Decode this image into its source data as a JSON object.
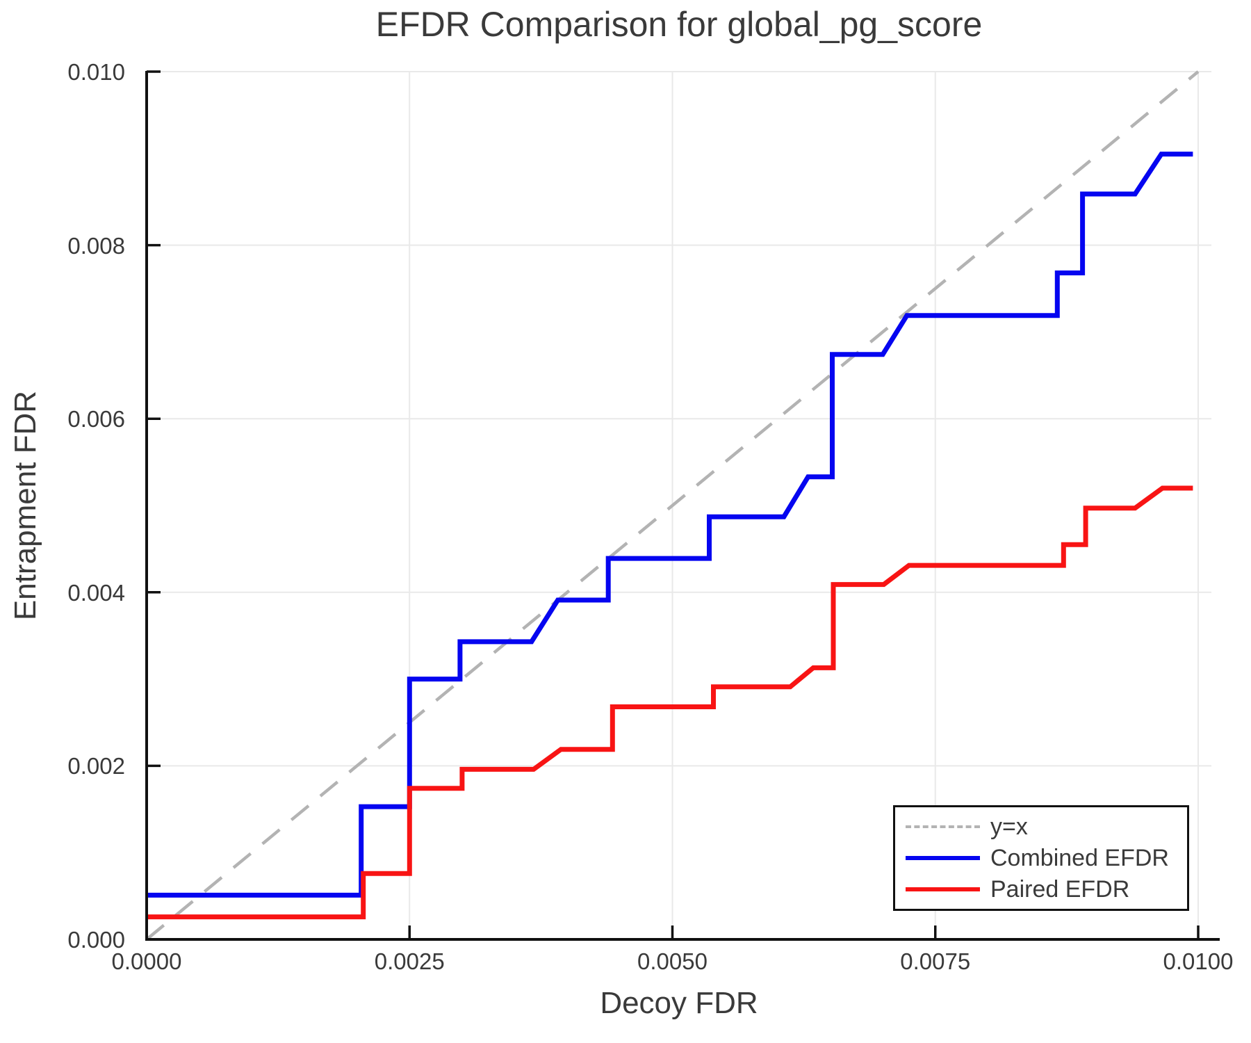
{
  "title": "EFDR Comparison for global_pg_score",
  "axes": {
    "xlabel": "Decoy FDR",
    "ylabel": "Entrapment FDR"
  },
  "legend": {
    "items": [
      {
        "label": "y=x",
        "color": "#b3b3b3",
        "style": "dashed"
      },
      {
        "label": "Combined EFDR",
        "color": "#0505f0",
        "style": "solid"
      },
      {
        "label": "Paired EFDR",
        "color": "#f81414",
        "style": "solid"
      }
    ]
  },
  "chart_data": {
    "type": "line",
    "title": "EFDR Comparison for global_pg_score",
    "xlabel": "Decoy FDR",
    "ylabel": "Entrapment FDR",
    "xlim": [
      0.0,
      0.0102
    ],
    "ylim": [
      0.0,
      0.01
    ],
    "grid": true,
    "grid_color": "#e9e9e9",
    "spine_color": "#111111",
    "tick_color": "#111111",
    "legend_position": "lower right",
    "x_ticks": [
      0.0,
      0.0025,
      0.005,
      0.0075,
      0.01
    ],
    "x_tick_labels": [
      "0.0000",
      "0.0025",
      "0.0050",
      "0.0075",
      "0.0100"
    ],
    "y_ticks": [
      0.0,
      0.002,
      0.004,
      0.006,
      0.008,
      0.01
    ],
    "y_tick_labels": [
      "0.000",
      "0.002",
      "0.004",
      "0.006",
      "0.008",
      "0.010"
    ],
    "series": [
      {
        "name": "y=x",
        "color": "#b3b3b3",
        "style": "dashed",
        "width": 4.5,
        "points": [
          [
            0.0,
            0.0
          ],
          [
            0.01,
            0.01
          ]
        ]
      },
      {
        "name": "Combined EFDR",
        "color": "#0505f0",
        "style": "solid",
        "width": 7,
        "points": [
          [
            0.0,
            0.00051
          ],
          [
            0.00204,
            0.00051
          ],
          [
            0.00204,
            0.00153
          ],
          [
            0.0025,
            0.00153
          ],
          [
            0.0025,
            0.003
          ],
          [
            0.00298,
            0.003
          ],
          [
            0.00298,
            0.00343
          ],
          [
            0.00366,
            0.00343
          ],
          [
            0.00391,
            0.00391
          ],
          [
            0.00439,
            0.00391
          ],
          [
            0.00439,
            0.00439
          ],
          [
            0.00535,
            0.00439
          ],
          [
            0.00535,
            0.00487
          ],
          [
            0.00606,
            0.00487
          ],
          [
            0.00629,
            0.00533
          ],
          [
            0.00652,
            0.00533
          ],
          [
            0.00652,
            0.00674
          ],
          [
            0.007,
            0.00674
          ],
          [
            0.00723,
            0.00719
          ],
          [
            0.00866,
            0.00719
          ],
          [
            0.00866,
            0.00768
          ],
          [
            0.0089,
            0.00768
          ],
          [
            0.0089,
            0.00859
          ],
          [
            0.0094,
            0.00859
          ],
          [
            0.00965,
            0.00905
          ],
          [
            0.00995,
            0.00905
          ]
        ]
      },
      {
        "name": "Paired EFDR",
        "color": "#f81414",
        "style": "solid",
        "width": 7,
        "points": [
          [
            0.0,
            0.00026
          ],
          [
            0.00206,
            0.00026
          ],
          [
            0.00206,
            0.00076
          ],
          [
            0.0025,
            0.00076
          ],
          [
            0.0025,
            0.00174
          ],
          [
            0.003,
            0.00174
          ],
          [
            0.003,
            0.00196
          ],
          [
            0.00368,
            0.00196
          ],
          [
            0.00394,
            0.00219
          ],
          [
            0.00443,
            0.00219
          ],
          [
            0.00443,
            0.00268
          ],
          [
            0.00539,
            0.00268
          ],
          [
            0.00539,
            0.00291
          ],
          [
            0.00612,
            0.00291
          ],
          [
            0.00634,
            0.00313
          ],
          [
            0.00653,
            0.00313
          ],
          [
            0.00653,
            0.00409
          ],
          [
            0.00701,
            0.00409
          ],
          [
            0.00725,
            0.00431
          ],
          [
            0.00872,
            0.00431
          ],
          [
            0.00872,
            0.00455
          ],
          [
            0.00893,
            0.00455
          ],
          [
            0.00893,
            0.00497
          ],
          [
            0.0094,
            0.00497
          ],
          [
            0.00966,
            0.0052
          ],
          [
            0.00995,
            0.0052
          ]
        ]
      }
    ]
  }
}
